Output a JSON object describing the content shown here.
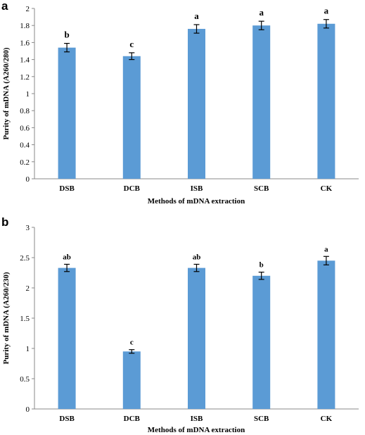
{
  "chart_data": [
    {
      "panel": "a",
      "type": "bar",
      "xlabel": "Methods of mDNA extraction",
      "ylabel": "Purity of mDNA (A260/280)",
      "ylim": [
        0,
        2
      ],
      "yticks": [
        "0",
        "0.2",
        "0.4",
        "0.6",
        "0.8",
        "1",
        "1.2",
        "1.4",
        "1.6",
        "1.8",
        "2"
      ],
      "categories": [
        "DSB",
        "DCB",
        "ISB",
        "SCB",
        "CK"
      ],
      "values": [
        1.54,
        1.44,
        1.76,
        1.8,
        1.82
      ],
      "errors": [
        0.05,
        0.04,
        0.05,
        0.05,
        0.05
      ],
      "significance": [
        "b",
        "c",
        "a",
        "a",
        "a"
      ],
      "grid": false,
      "bar_color": "#5b9bd5"
    },
    {
      "panel": "b",
      "type": "bar",
      "xlabel": "Methods of mDNA extraction",
      "ylabel": "Purity of mDNA (A260/230)",
      "ylim": [
        0,
        3
      ],
      "yticks": [
        "0",
        "0.5",
        "1",
        "1.5",
        "2",
        "2.5",
        "3"
      ],
      "categories": [
        "DSB",
        "DCB",
        "ISB",
        "SCB",
        "CK"
      ],
      "values": [
        2.33,
        0.95,
        2.33,
        2.2,
        2.45
      ],
      "errors": [
        0.06,
        0.03,
        0.06,
        0.06,
        0.07
      ],
      "significance": [
        "ab",
        "c",
        "ab",
        "b",
        "a"
      ],
      "grid": false,
      "bar_color": "#5b9bd5"
    }
  ]
}
